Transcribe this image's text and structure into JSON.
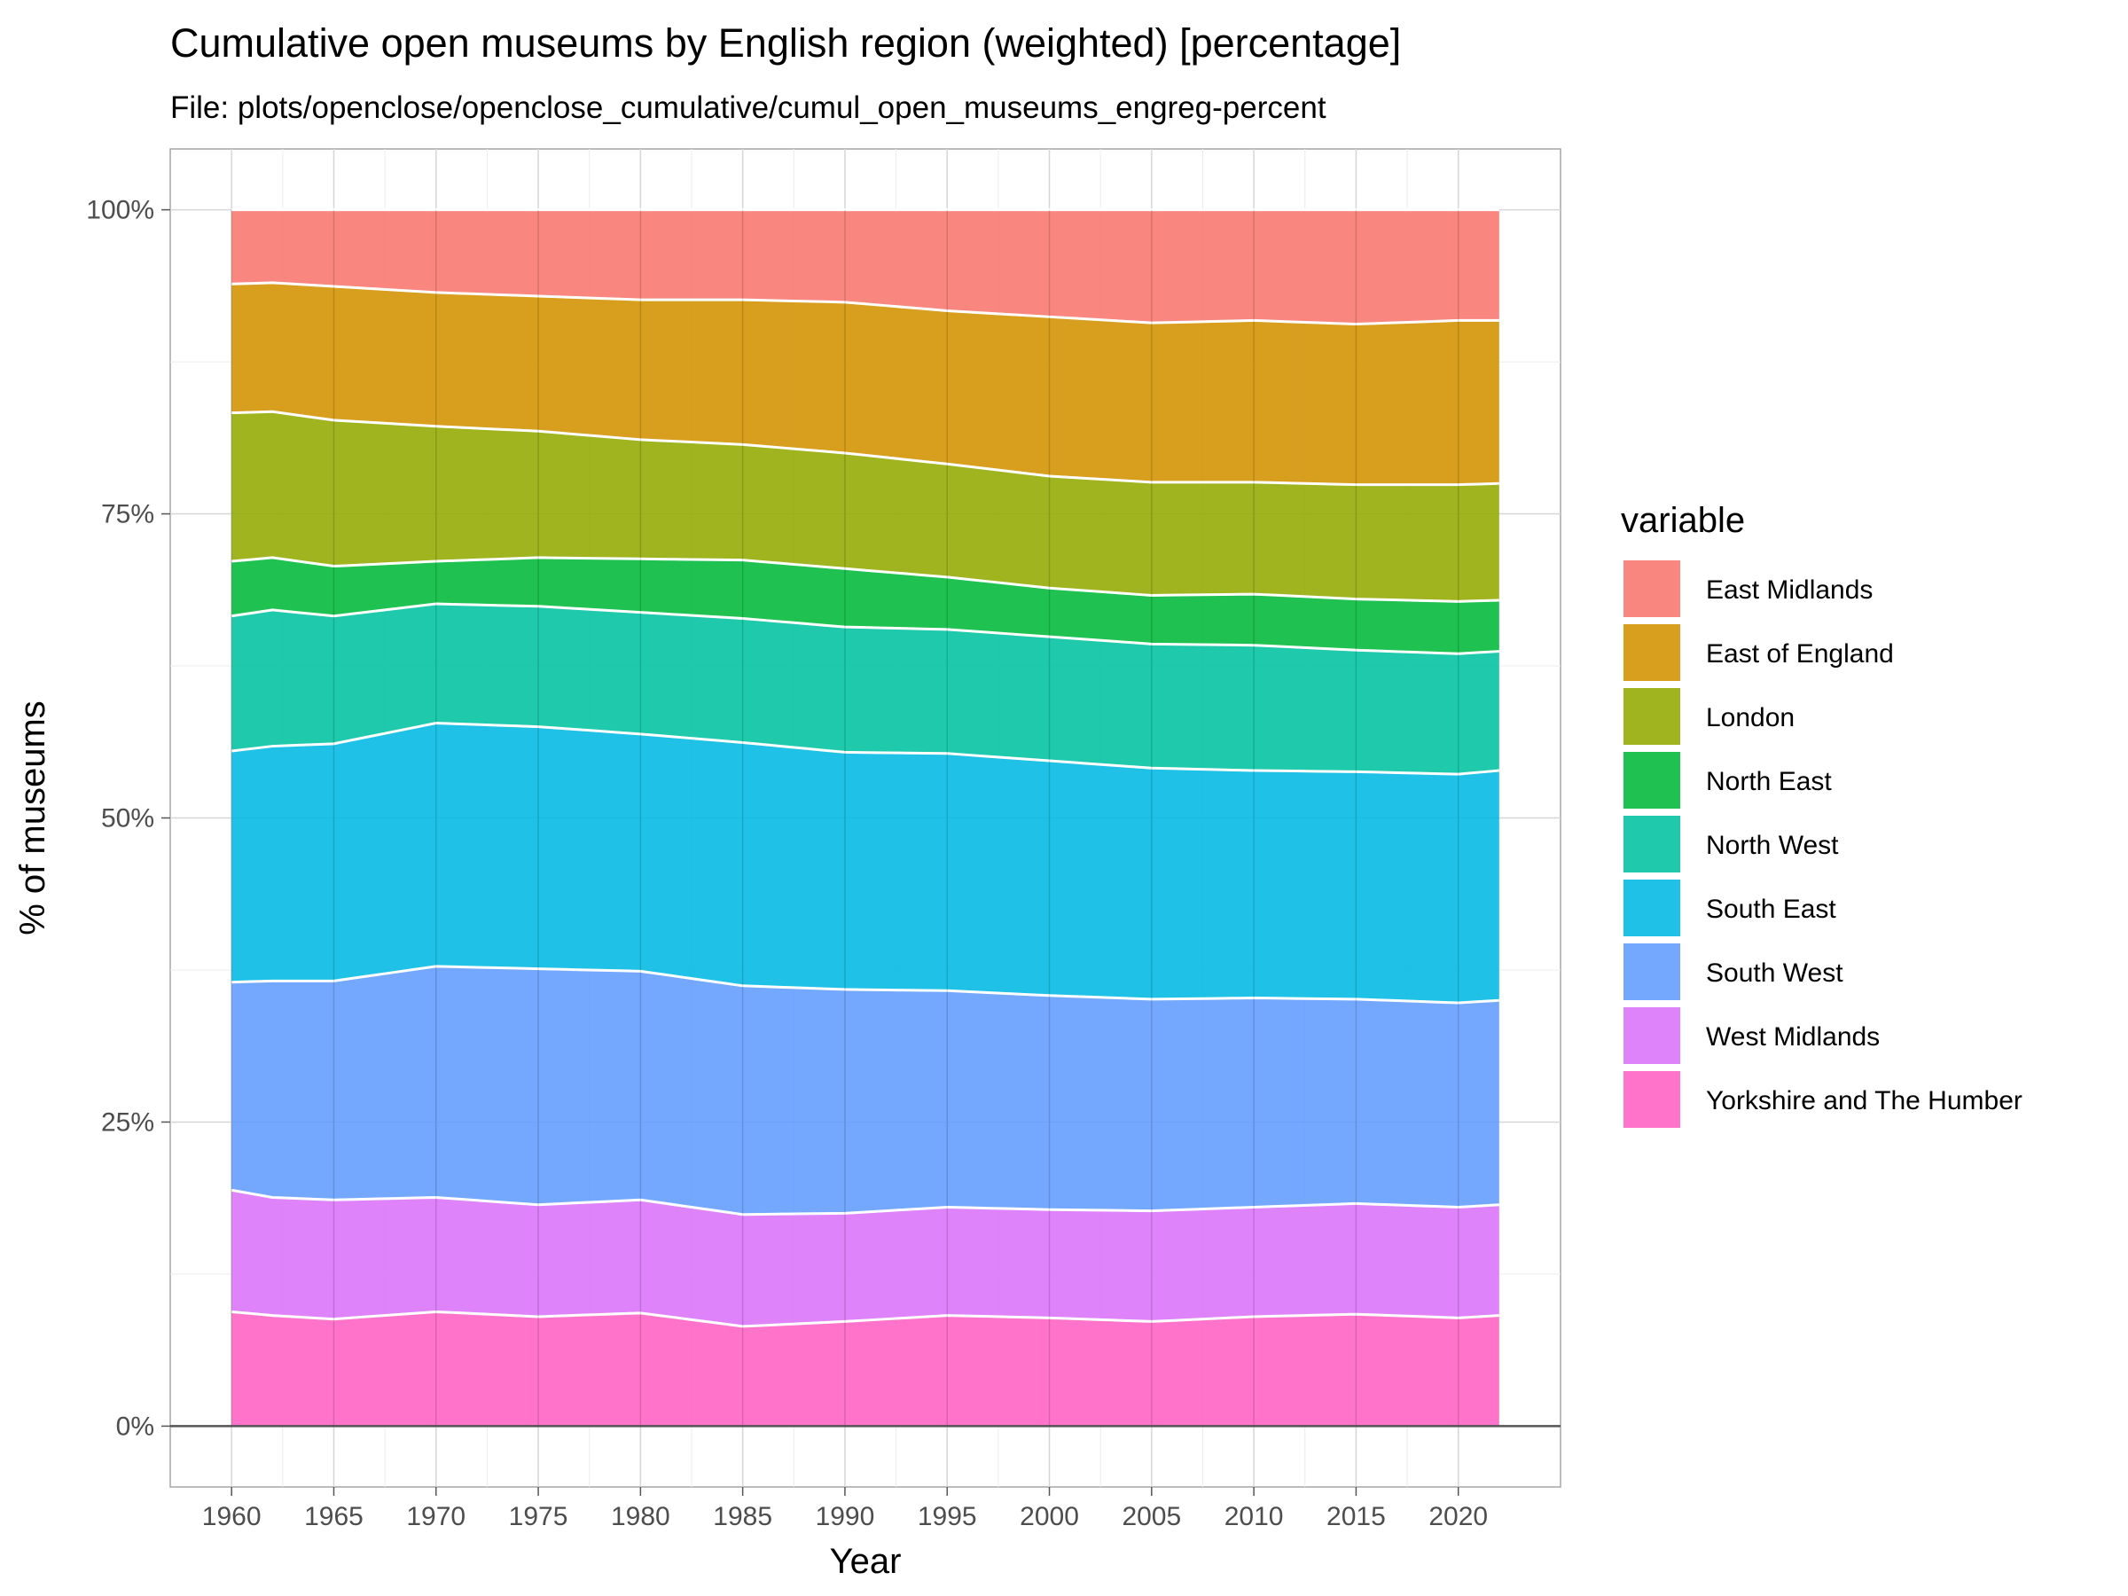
{
  "chart_data": {
    "type": "area",
    "stacked": true,
    "title": "Cumulative open museums by English region (weighted) [percentage]",
    "subtitle": "File: plots/openclose/openclose_cumulative/cumul_open_museums_engreg-percent",
    "xlabel": "Year",
    "ylabel": "% of museums",
    "xlim": [
      1957,
      2025
    ],
    "ylim": [
      -0.05,
      1.05
    ],
    "x_ticks": [
      1960,
      1965,
      1970,
      1975,
      1980,
      1985,
      1990,
      1995,
      2000,
      2005,
      2010,
      2015,
      2020
    ],
    "x_tick_labels": [
      "1960",
      "1965",
      "1970",
      "1975",
      "1980",
      "1985",
      "1990",
      "1995",
      "2000",
      "2005",
      "2010",
      "2015",
      "2020"
    ],
    "y_ticks": [
      0,
      0.25,
      0.5,
      0.75,
      1
    ],
    "y_tick_labels": [
      "0%",
      "25%",
      "50%",
      "75%",
      "100%"
    ],
    "grid": true,
    "legend_title": "variable",
    "legend_position": "right",
    "keyframe_years": [
      1960,
      1962,
      1965,
      1970,
      1975,
      1980,
      1985,
      1990,
      1995,
      2000,
      2005,
      2010,
      2015,
      2020,
      2022
    ],
    "stack_order": [
      "Yorkshire and The Humber",
      "West Midlands",
      "South West",
      "South East",
      "North West",
      "North East",
      "London",
      "East of England",
      "East Midlands"
    ],
    "series": [
      {
        "name": "East Midlands",
        "color": "#F8766D",
        "values": [
          0.061,
          0.06,
          0.063,
          0.068,
          0.071,
          0.074,
          0.074,
          0.076,
          0.083,
          0.088,
          0.093,
          0.091,
          0.094,
          0.091,
          0.091
        ]
      },
      {
        "name": "East of England",
        "color": "#D39200",
        "values": [
          0.106,
          0.106,
          0.11,
          0.11,
          0.111,
          0.115,
          0.119,
          0.124,
          0.126,
          0.131,
          0.131,
          0.133,
          0.132,
          0.135,
          0.134
        ]
      },
      {
        "name": "London",
        "color": "#93AA00",
        "values": [
          0.122,
          0.12,
          0.12,
          0.111,
          0.104,
          0.098,
          0.095,
          0.095,
          0.093,
          0.092,
          0.093,
          0.092,
          0.094,
          0.096,
          0.096
        ]
      },
      {
        "name": "North East",
        "color": "#00BA38",
        "values": [
          0.045,
          0.043,
          0.041,
          0.035,
          0.04,
          0.044,
          0.048,
          0.048,
          0.043,
          0.04,
          0.04,
          0.042,
          0.042,
          0.043,
          0.042
        ]
      },
      {
        "name": "North West",
        "color": "#00C19F",
        "values": [
          0.111,
          0.112,
          0.105,
          0.098,
          0.099,
          0.1,
          0.102,
          0.103,
          0.102,
          0.102,
          0.102,
          0.103,
          0.1,
          0.099,
          0.098
        ]
      },
      {
        "name": "South East",
        "color": "#00B9E3",
        "values": [
          0.19,
          0.193,
          0.195,
          0.2,
          0.199,
          0.195,
          0.2,
          0.195,
          0.195,
          0.193,
          0.19,
          0.187,
          0.187,
          0.188,
          0.189
        ]
      },
      {
        "name": "South West",
        "color": "#619CFF",
        "values": [
          0.171,
          0.178,
          0.18,
          0.19,
          0.194,
          0.188,
          0.188,
          0.184,
          0.178,
          0.176,
          0.174,
          0.172,
          0.168,
          0.168,
          0.168
        ]
      },
      {
        "name": "West Midlands",
        "color": "#DB72FB",
        "values": [
          0.1,
          0.097,
          0.098,
          0.094,
          0.092,
          0.093,
          0.092,
          0.089,
          0.089,
          0.089,
          0.091,
          0.09,
          0.091,
          0.091,
          0.091
        ]
      },
      {
        "name": "Yorkshire and The Humber",
        "color": "#FF61C3",
        "values": [
          0.094,
          0.091,
          0.088,
          0.094,
          0.09,
          0.093,
          0.082,
          0.086,
          0.091,
          0.089,
          0.086,
          0.09,
          0.092,
          0.089,
          0.091
        ]
      }
    ]
  }
}
